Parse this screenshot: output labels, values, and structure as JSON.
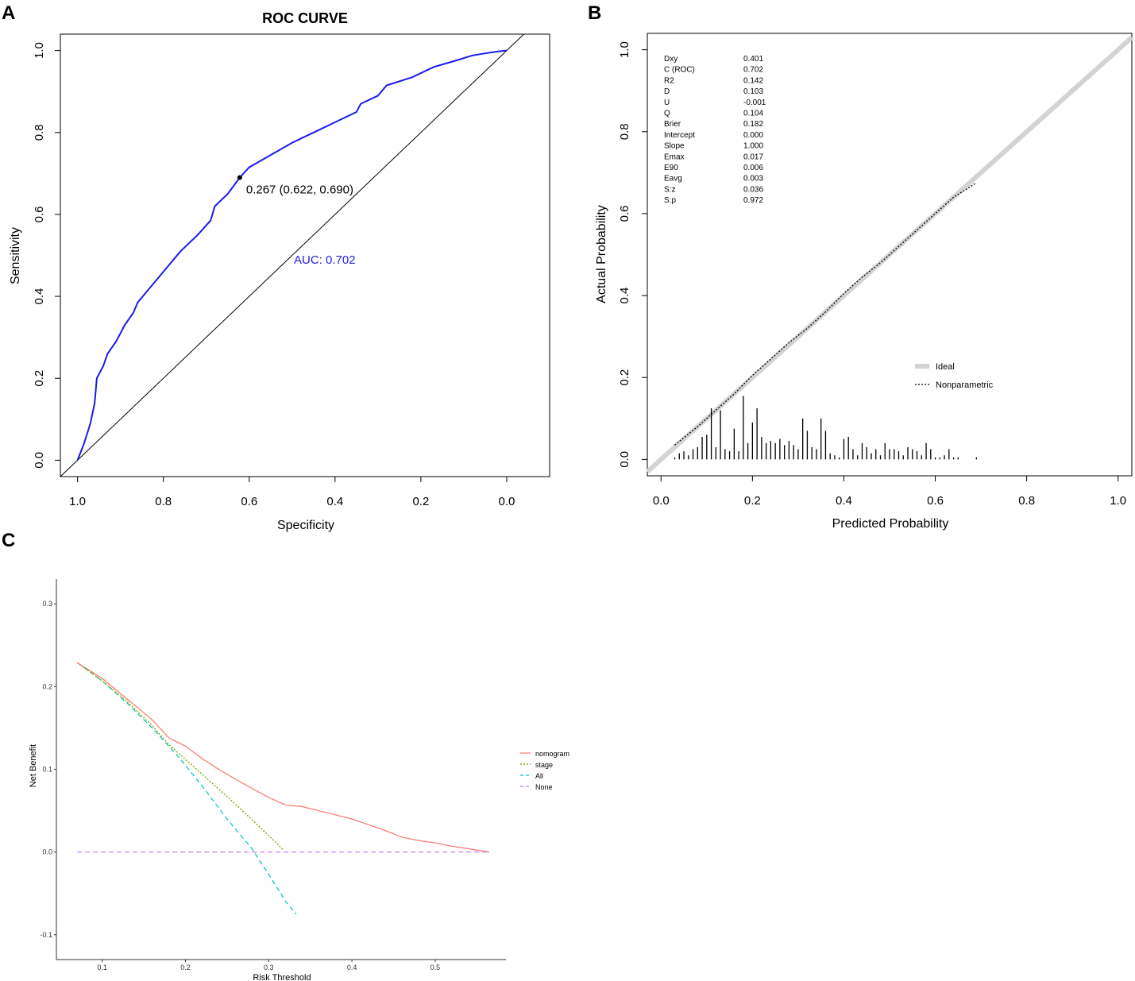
{
  "panels": {
    "a": {
      "letter": "A"
    },
    "b": {
      "letter": "B"
    },
    "c": {
      "letter": "C"
    }
  },
  "chart_data": [
    {
      "panel": "A",
      "type": "line",
      "title": "ROC CURVE",
      "xlabel": "Specificity",
      "ylabel": "Sensitivity",
      "xlim": [
        1.04,
        -0.1
      ],
      "ylim": [
        -0.04,
        1.04
      ],
      "xticks": [
        1.0,
        0.8,
        0.6,
        0.4,
        0.2,
        0.0
      ],
      "xtick_labels": [
        "1.0",
        "0.8",
        "0.6",
        "0.4",
        "0.2",
        "0.0"
      ],
      "yticks": [
        0.0,
        0.2,
        0.4,
        0.6,
        0.8,
        1.0
      ],
      "ytick_labels": [
        "0.0",
        "0.2",
        "0.4",
        "0.6",
        "0.8",
        "1.0"
      ],
      "colors": {
        "roc": "#1a1aee",
        "auc_text": "#2222dd",
        "diagonal": "#000000"
      },
      "series": [
        {
          "name": "ROC",
          "specificity": [
            1.0,
            0.985,
            0.97,
            0.96,
            0.955,
            0.94,
            0.93,
            0.91,
            0.89,
            0.87,
            0.86,
            0.84,
            0.8,
            0.76,
            0.72,
            0.69,
            0.68,
            0.65,
            0.622,
            0.6,
            0.55,
            0.5,
            0.45,
            0.4,
            0.35,
            0.34,
            0.3,
            0.28,
            0.22,
            0.17,
            0.12,
            0.08,
            0.05,
            0.02,
            0.0
          ],
          "sensitivity": [
            0.0,
            0.04,
            0.09,
            0.14,
            0.2,
            0.23,
            0.26,
            0.29,
            0.33,
            0.36,
            0.385,
            0.41,
            0.46,
            0.51,
            0.55,
            0.585,
            0.62,
            0.65,
            0.69,
            0.715,
            0.745,
            0.775,
            0.8,
            0.825,
            0.85,
            0.87,
            0.89,
            0.915,
            0.935,
            0.96,
            0.975,
            0.988,
            0.993,
            0.998,
            1.0
          ]
        }
      ],
      "reference_line": {
        "from": [
          1.04,
          -0.04
        ],
        "to": [
          -0.04,
          1.04
        ]
      },
      "threshold_point": {
        "specificity": 0.622,
        "sensitivity": 0.69,
        "label": "0.267 (0.622, 0.690)"
      },
      "annotations": [
        {
          "text": "AUC: 0.702",
          "specificity": 0.5,
          "sensitivity": 0.48
        }
      ]
    },
    {
      "panel": "B",
      "type": "line",
      "xlabel": "Predicted Probability",
      "ylabel": "Actual Probability",
      "xlim": [
        -0.03,
        1.03
      ],
      "ylim": [
        -0.04,
        1.04
      ],
      "xticks": [
        0.0,
        0.2,
        0.4,
        0.6,
        0.8,
        1.0
      ],
      "xtick_labels": [
        "0.0",
        "0.2",
        "0.4",
        "0.6",
        "0.8",
        "1.0"
      ],
      "yticks": [
        0.0,
        0.2,
        0.4,
        0.6,
        0.8,
        1.0
      ],
      "ytick_labels": [
        "0.0",
        "0.2",
        "0.4",
        "0.6",
        "0.8",
        "1.0"
      ],
      "colors": {
        "ideal": "#d3d3d3",
        "nonparametric": "#000000"
      },
      "series": [
        {
          "name": "Ideal",
          "x": [
            -0.03,
            1.03
          ],
          "y": [
            -0.03,
            1.03
          ]
        },
        {
          "name": "Nonparametric",
          "x": [
            0.03,
            0.08,
            0.12,
            0.16,
            0.2,
            0.24,
            0.28,
            0.32,
            0.36,
            0.4,
            0.44,
            0.48,
            0.52,
            0.56,
            0.6,
            0.64,
            0.69
          ],
          "y": [
            0.035,
            0.08,
            0.12,
            0.16,
            0.205,
            0.245,
            0.285,
            0.32,
            0.36,
            0.405,
            0.445,
            0.48,
            0.52,
            0.56,
            0.6,
            0.64,
            0.675
          ]
        }
      ],
      "histogram": {
        "x": [
          0.03,
          0.04,
          0.05,
          0.06,
          0.07,
          0.08,
          0.09,
          0.1,
          0.11,
          0.12,
          0.13,
          0.14,
          0.15,
          0.16,
          0.17,
          0.18,
          0.19,
          0.2,
          0.21,
          0.22,
          0.23,
          0.24,
          0.25,
          0.26,
          0.27,
          0.28,
          0.29,
          0.3,
          0.31,
          0.32,
          0.33,
          0.34,
          0.35,
          0.36,
          0.37,
          0.38,
          0.39,
          0.4,
          0.41,
          0.42,
          0.43,
          0.44,
          0.45,
          0.46,
          0.47,
          0.48,
          0.49,
          0.5,
          0.51,
          0.52,
          0.53,
          0.54,
          0.55,
          0.56,
          0.57,
          0.58,
          0.59,
          0.6,
          0.61,
          0.62,
          0.63,
          0.64,
          0.65,
          0.69
        ],
        "height": [
          0.005,
          0.015,
          0.02,
          0.01,
          0.025,
          0.03,
          0.055,
          0.06,
          0.125,
          0.03,
          0.12,
          0.025,
          0.02,
          0.075,
          0.02,
          0.155,
          0.04,
          0.09,
          0.125,
          0.055,
          0.04,
          0.045,
          0.04,
          0.05,
          0.035,
          0.045,
          0.035,
          0.025,
          0.1,
          0.07,
          0.03,
          0.025,
          0.1,
          0.07,
          0.015,
          0.01,
          0.005,
          0.05,
          0.055,
          0.025,
          0.01,
          0.04,
          0.03,
          0.015,
          0.025,
          0.01,
          0.04,
          0.025,
          0.025,
          0.02,
          0.01,
          0.03,
          0.025,
          0.02,
          0.01,
          0.04,
          0.025,
          0.005,
          0.005,
          0.01,
          0.025,
          0.005,
          0.005,
          0.005
        ]
      },
      "stats": [
        {
          "label": "Dxy",
          "value": "0.401"
        },
        {
          "label": "C (ROC)",
          "value": "0.702"
        },
        {
          "label": "R2",
          "value": "0.142"
        },
        {
          "label": "D",
          "value": "0.103"
        },
        {
          "label": "U",
          "value": "-0.001"
        },
        {
          "label": "Q",
          "value": "0.104"
        },
        {
          "label": "Brier",
          "value": "0.182"
        },
        {
          "label": "Intercept",
          "value": "0.000"
        },
        {
          "label": "Slope",
          "value": "1.000"
        },
        {
          "label": "Emax",
          "value": "0.017"
        },
        {
          "label": "E90",
          "value": "0.006"
        },
        {
          "label": "Eavg",
          "value": "0.003"
        },
        {
          "label": "S:z",
          "value": "0.036"
        },
        {
          "label": "S:p",
          "value": "0.972"
        }
      ],
      "legend": {
        "position": "bottom-right",
        "entries": [
          "Ideal",
          "Nonparametric"
        ]
      }
    },
    {
      "panel": "C",
      "type": "line",
      "xlabel": "Risk Threshold",
      "ylabel": "Net Benefit",
      "xlim": [
        0.045,
        0.585
      ],
      "ylim": [
        -0.13,
        0.33
      ],
      "xticks": [
        0.1,
        0.2,
        0.3,
        0.4,
        0.5
      ],
      "xtick_labels": [
        "0.1",
        "0.2",
        "0.3",
        "0.4",
        "0.5"
      ],
      "yticks": [
        -0.1,
        0.0,
        0.1,
        0.2,
        0.3
      ],
      "ytick_labels": [
        "-0.1",
        "0.0",
        "0.1",
        "0.2",
        "0.3"
      ],
      "colors": {
        "nomogram": "#f8766d",
        "stage": "#7cae00",
        "All": "#00bfc4",
        "None": "#c77cff"
      },
      "series": [
        {
          "name": "nomogram",
          "x": [
            0.07,
            0.1,
            0.13,
            0.16,
            0.18,
            0.2,
            0.22,
            0.24,
            0.26,
            0.28,
            0.3,
            0.32,
            0.34,
            0.36,
            0.38,
            0.4,
            0.42,
            0.44,
            0.46,
            0.48,
            0.5,
            0.52,
            0.54,
            0.565
          ],
          "y": [
            0.229,
            0.21,
            0.185,
            0.16,
            0.138,
            0.128,
            0.113,
            0.1,
            0.088,
            0.077,
            0.066,
            0.057,
            0.055,
            0.05,
            0.045,
            0.04,
            0.033,
            0.026,
            0.018,
            0.014,
            0.011,
            0.007,
            0.004,
            0.0
          ]
        },
        {
          "name": "stage",
          "x": [
            0.07,
            0.1,
            0.13,
            0.16,
            0.18,
            0.2,
            0.22,
            0.24,
            0.26,
            0.28,
            0.3,
            0.318
          ],
          "y": [
            0.229,
            0.207,
            0.182,
            0.153,
            0.13,
            0.112,
            0.094,
            0.076,
            0.058,
            0.039,
            0.02,
            0.002
          ]
        },
        {
          "name": "All",
          "x": [
            0.07,
            0.1,
            0.13,
            0.16,
            0.19,
            0.22,
            0.25,
            0.28,
            0.3,
            0.31,
            0.32,
            0.333
          ],
          "y": [
            0.229,
            0.207,
            0.18,
            0.15,
            0.117,
            0.08,
            0.04,
            0.004,
            -0.027,
            -0.043,
            -0.059,
            -0.075
          ]
        },
        {
          "name": "None",
          "x": [
            0.07,
            0.565
          ],
          "y": [
            0.0,
            0.0
          ]
        }
      ],
      "legend": {
        "position": "right",
        "entries": [
          "nomogram",
          "stage",
          "All",
          "None"
        ]
      }
    }
  ]
}
